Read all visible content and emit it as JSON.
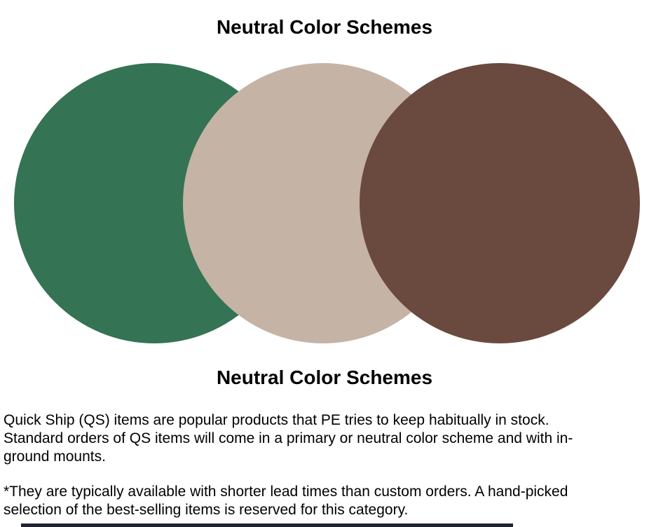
{
  "page": {
    "title": "Neutral Color Schemes",
    "caption": "Neutral Color Schemes",
    "background": "#ffffff"
  },
  "palette": {
    "name": "Neutral Color Schemes",
    "swatches": [
      {
        "name": "green",
        "color": "#347353"
      },
      {
        "name": "beige",
        "color": "#C5B3A5"
      },
      {
        "name": "brown",
        "color": "#6A493E"
      }
    ]
  },
  "body": {
    "paragraphs": [
      {
        "lines": [
          "Quick Ship (QS) items are popular products that PE tries to keep habitually in stock.",
          "Standard orders of QS items will come in a primary or neutral color scheme and with in-",
          "ground mounts."
        ]
      },
      {
        "lines": [
          "*They are typically available with shorter lead times than custom orders. A hand-picked",
          "selection of the best-selling items is reserved for this category."
        ]
      }
    ]
  },
  "footer": {
    "bar_color": "#1E2430"
  }
}
